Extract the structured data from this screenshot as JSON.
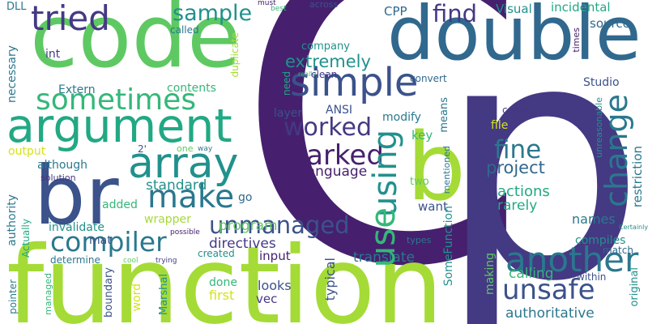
{
  "palette": {
    "dark_purple": "#46206e",
    "purple": "#443983",
    "indigo": "#3b528b",
    "blue": "#31688e",
    "teal_blue": "#2a788e",
    "teal": "#21918c",
    "green_teal": "#22a884",
    "green": "#35b779",
    "light_green": "#5ec962",
    "yellow_green": "#a5db36",
    "yellow": "#d5e21a"
  },
  "words": {
    "c": "C",
    "p": "p",
    "function": "function",
    "code": "code",
    "double": "double",
    "argument": "argument",
    "br": "br",
    "b": "b",
    "array": "array",
    "tried": "tried",
    "simple": "simple",
    "sometimes": "sometimes",
    "compiler": "compiler",
    "make": "make",
    "another": "another",
    "unmanaged": "unmanaged",
    "unsafe": "unsafe",
    "using": "using",
    "use": "use",
    "change": "change",
    "marked": "marked",
    "worked": "worked",
    "fine": "fine",
    "find": "find",
    "sample": "sample",
    "project": "project",
    "extremely": "extremely",
    "authoritative": "authoritative",
    "translate": "translate",
    "language": "language",
    "standard": "standard",
    "program": "program",
    "directives": "directives",
    "wrapper": "wrapper",
    "somefunction": "SomeFunction",
    "actions": "actions",
    "rarely": "rarely",
    "calling": "calling",
    "compiles": "compiles",
    "names": "names",
    "studio": "Studio",
    "visual": "Visual",
    "incidental": "incidental",
    "source": "source",
    "cpp": "CPP",
    "modify": "modify",
    "key": "key",
    "want": "want",
    "file": "file",
    "company": "company",
    "layer": "layer",
    "ansi": "ANSI",
    "contents": "contents",
    "extern": "Extern",
    "int": "int",
    "output": "output",
    "although": "although",
    "solution": "solution",
    "added": "added",
    "mat": "mat",
    "invalidate": "invalidate",
    "determine": "determine",
    "created": "created",
    "input": "input",
    "looks": "looks",
    "vec": "vec",
    "first": "first",
    "done": "done",
    "go": "go",
    "typical": "typical",
    "making": "making",
    "within": "within",
    "match": "match",
    "original": "original",
    "restriction": "restriction",
    "unreasonable": "unreasonable",
    "times": "times",
    "complex": "complex",
    "two": "two",
    "types": "types",
    "mentioned": "mentioned",
    "means": "means",
    "need": "need",
    "convert": "convert",
    "clean": "clean",
    "really": "really",
    "across": "across",
    "must": "must",
    "best": "best",
    "called": "called",
    "duplicate": "duplicate",
    "necessary": "necessary",
    "dll": "DLL",
    "authority": "authority",
    "actually": "Actually",
    "pointer": "pointer",
    "managed": "managed",
    "boundary": "boundary",
    "word": "word",
    "marshal": "Marshal",
    "cool": "cool",
    "trying": "trying",
    "possible": "possible",
    "one": "one",
    "way": "way",
    "two_sq": "2'",
    "certainly": "Certainly"
  }
}
